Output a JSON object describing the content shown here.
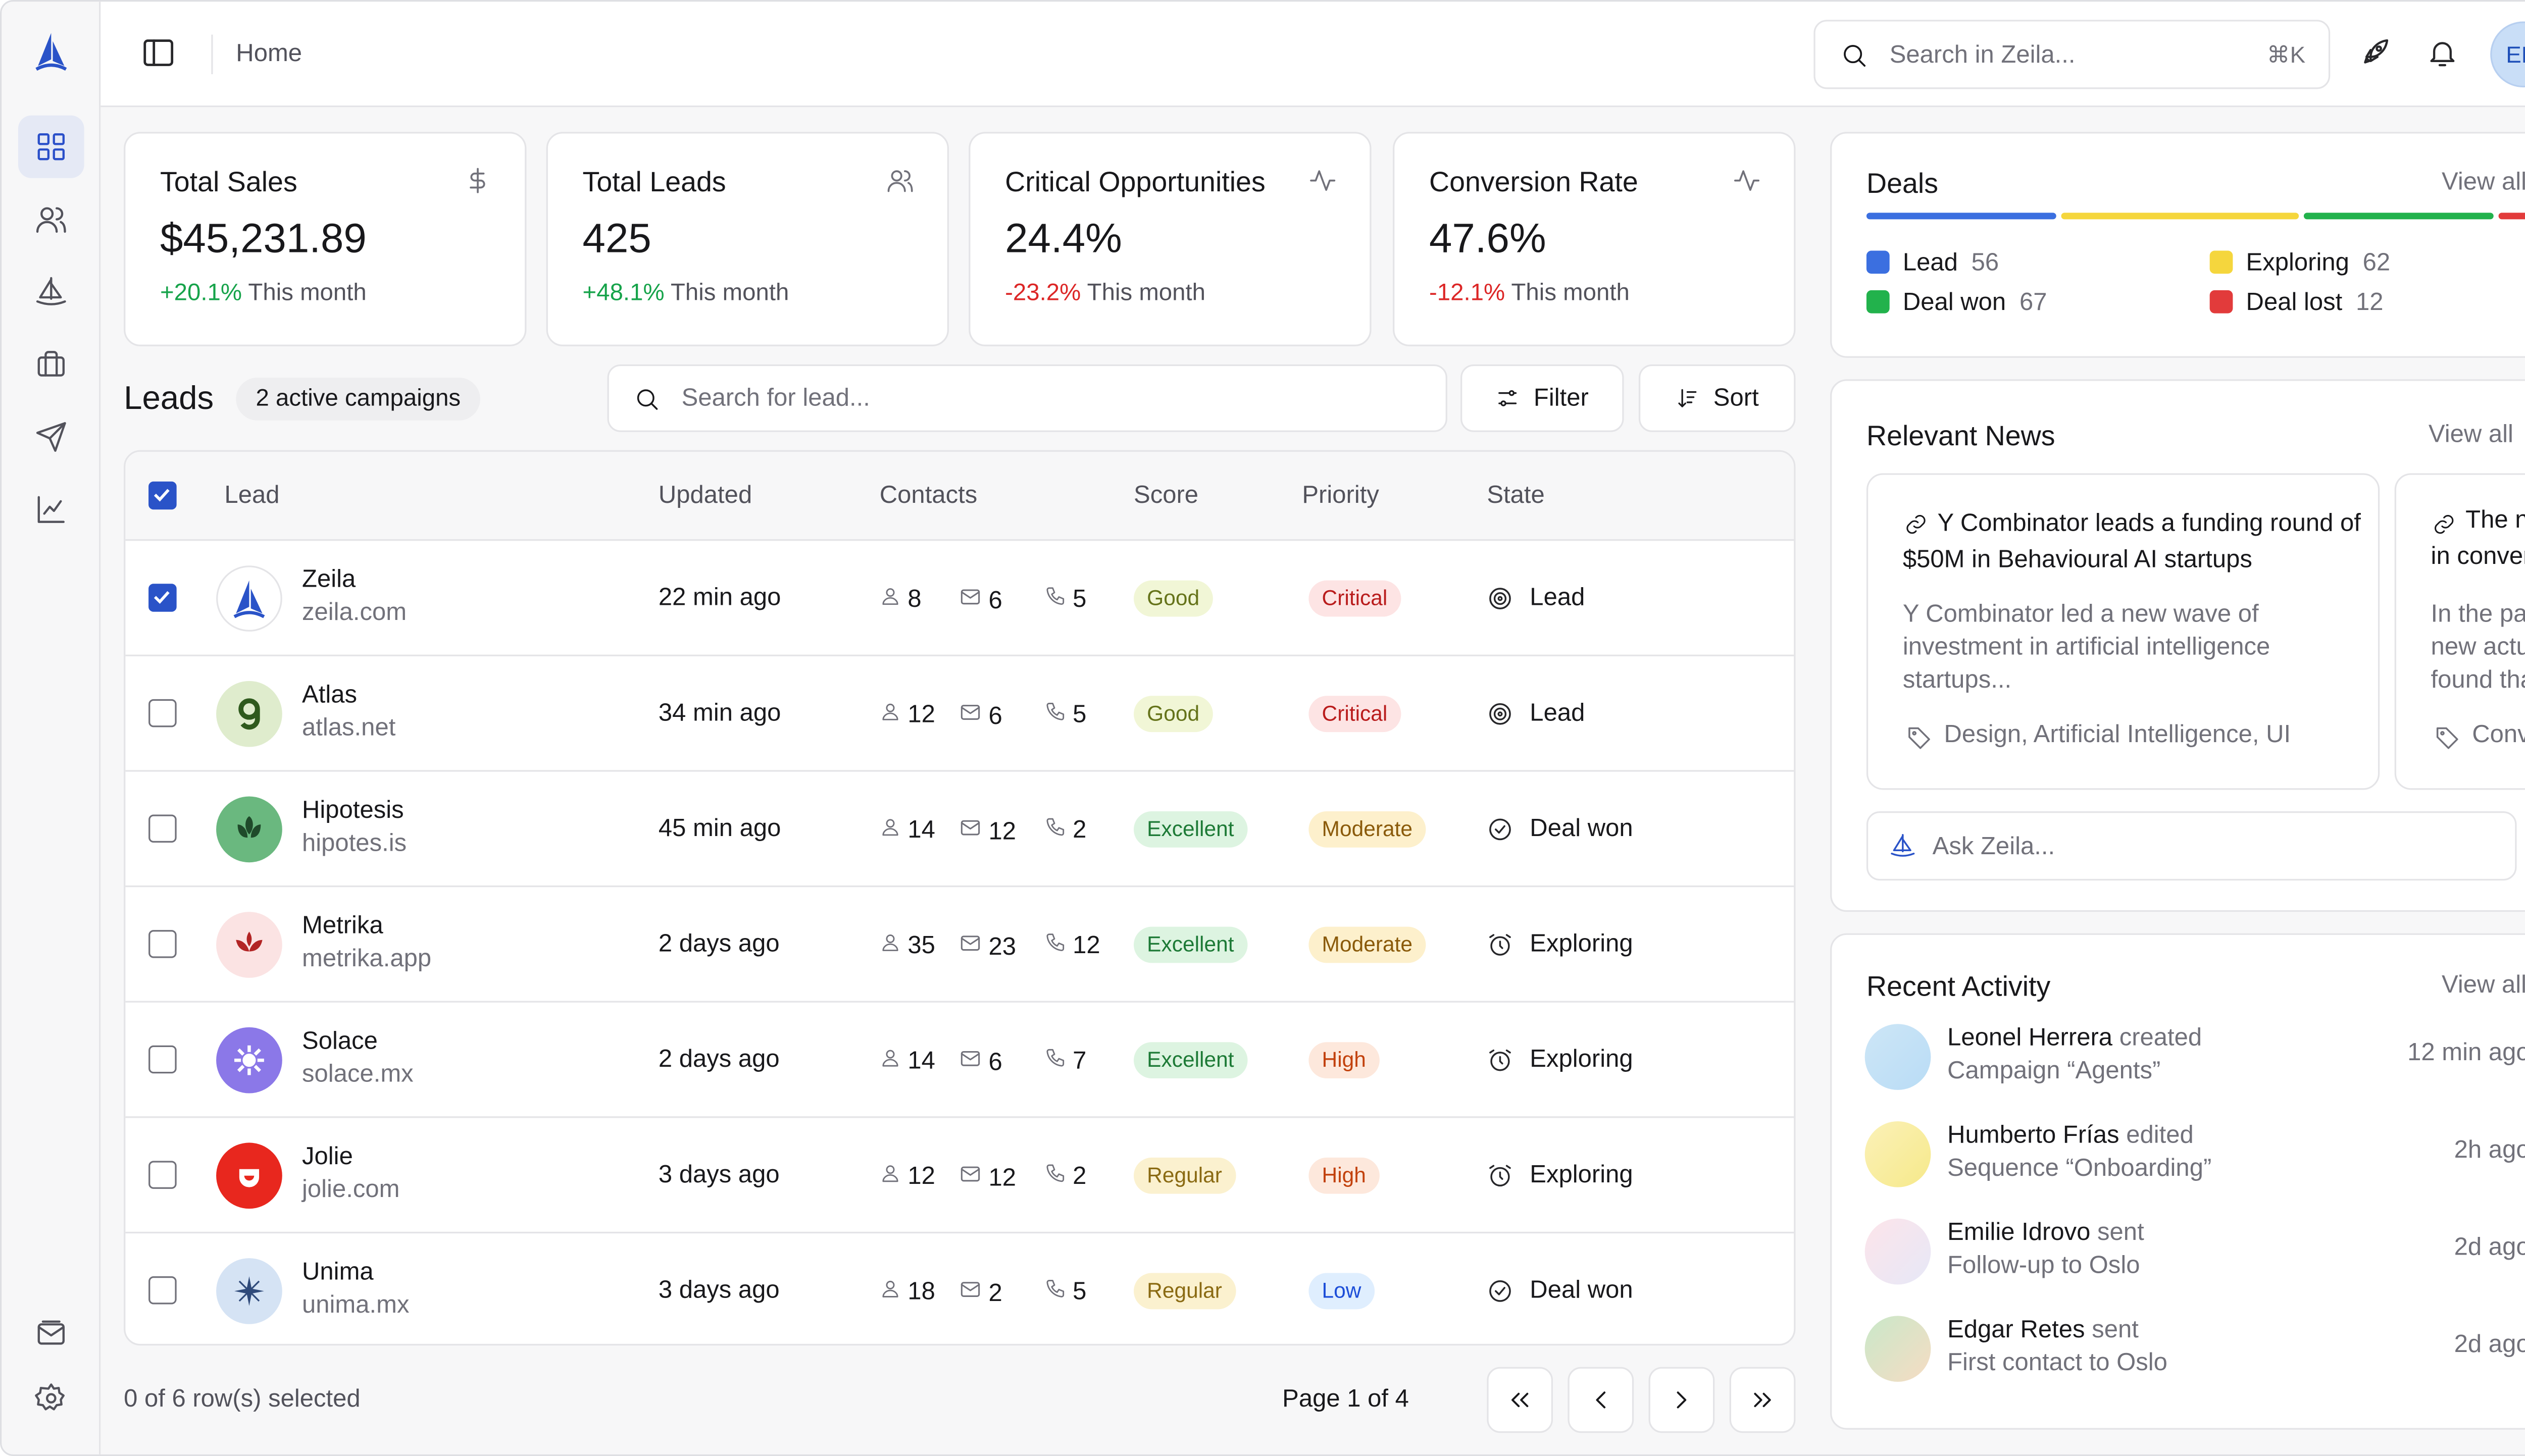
{
  "topbar": {
    "breadcrumb": "Home",
    "search_placeholder": "Search in Zeila...",
    "search_shortcut": "⌘K",
    "avatar_initials": "EM"
  },
  "sidebar": {
    "items": [
      {
        "icon": "dashboard-icon",
        "active": true
      },
      {
        "icon": "users-icon"
      },
      {
        "icon": "sailboat-icon"
      },
      {
        "icon": "briefcase-icon"
      },
      {
        "icon": "send-icon"
      },
      {
        "icon": "chart-icon"
      }
    ],
    "bottom_items": [
      {
        "icon": "inbox-icon"
      },
      {
        "icon": "settings-icon"
      }
    ]
  },
  "stats": [
    {
      "title": "Total Sales",
      "value": "$45,231.89",
      "delta": "+20.1%",
      "suffix": "This month",
      "trend": "pos",
      "icon": "dollar-icon"
    },
    {
      "title": "Total Leads",
      "value": "425",
      "delta": "+48.1%",
      "suffix": "This month",
      "trend": "pos",
      "icon": "users-icon"
    },
    {
      "title": "Critical Opportunities",
      "value": "24.4%",
      "delta": "-23.2%",
      "suffix": "This month",
      "trend": "neg",
      "icon": "activity-icon"
    },
    {
      "title": "Conversion Rate",
      "value": "47.6%",
      "delta": "-12.1%",
      "suffix": "This month",
      "trend": "neg",
      "icon": "activity-icon"
    }
  ],
  "leads": {
    "title": "Leads",
    "campaigns_badge": "2 active campaigns",
    "search_placeholder": "Search for lead...",
    "filter_label": "Filter",
    "sort_label": "Sort",
    "columns": [
      "Lead",
      "Updated",
      "Contacts",
      "Score",
      "Priority",
      "State"
    ],
    "rows": [
      {
        "name": "Zeila",
        "domain": "zeila.com",
        "updated": "22 min ago",
        "people": "8",
        "emails": "6",
        "calls": "5",
        "score": "Good",
        "priority": "Critical",
        "state": "Lead",
        "checked": true
      },
      {
        "name": "Atlas",
        "domain": "atlas.net",
        "updated": "34 min ago",
        "people": "12",
        "emails": "6",
        "calls": "5",
        "score": "Good",
        "priority": "Critical",
        "state": "Lead",
        "checked": false
      },
      {
        "name": "Hipotesis",
        "domain": "hipotes.is",
        "updated": "45 min ago",
        "people": "14",
        "emails": "12",
        "calls": "2",
        "score": "Excellent",
        "priority": "Moderate",
        "state": "Deal won",
        "checked": false
      },
      {
        "name": "Metrika",
        "domain": "metrika.app",
        "updated": "2 days ago",
        "people": "35",
        "emails": "23",
        "calls": "12",
        "score": "Excellent",
        "priority": "Moderate",
        "state": "Exploring",
        "checked": false
      },
      {
        "name": "Solace",
        "domain": "solace.mx",
        "updated": "2 days ago",
        "people": "14",
        "emails": "6",
        "calls": "7",
        "score": "Excellent",
        "priority": "High",
        "state": "Exploring",
        "checked": false
      },
      {
        "name": "Jolie",
        "domain": "jolie.com",
        "updated": "3 days ago",
        "people": "12",
        "emails": "12",
        "calls": "2",
        "score": "Regular",
        "priority": "High",
        "state": "Exploring",
        "checked": false
      },
      {
        "name": "Unima",
        "domain": "unima.mx",
        "updated": "3 days ago",
        "people": "18",
        "emails": "2",
        "calls": "5",
        "score": "Regular",
        "priority": "Low",
        "state": "Deal won",
        "checked": false
      }
    ],
    "selection_text": "0 of 6 row(s) selected",
    "page_text": "Page 1 of 4"
  },
  "deals": {
    "title": "Deals",
    "view_all": "View all",
    "items": [
      {
        "label": "Lead",
        "count": "56",
        "color": "#3b6fe0"
      },
      {
        "label": "Exploring",
        "count": "62",
        "color": "#f5d63d"
      },
      {
        "label": "Deal won",
        "count": "67",
        "color": "#22b24c"
      },
      {
        "label": "Deal lost",
        "count": "12",
        "color": "#e23b3b"
      }
    ]
  },
  "news": {
    "title": "Relevant News",
    "view_all": "View all",
    "items": [
      {
        "title": "Y Combinator leads a funding round of $50M in Behavioural AI startups",
        "summary": "Y Combinator led a new wave of investment in artificial intelligence startups...",
        "tags": "Design, Artificial Intelligence, UI"
      },
      {
        "title": "The new",
        "title2": "in conversa",
        "summary": "In the past",
        "summary2": "new actuali",
        "summary3": "found that t",
        "tags": "Convers"
      }
    ],
    "ask_placeholder": "Ask Zeila..."
  },
  "activity": {
    "title": "Recent Activity",
    "view_all": "View all",
    "items": [
      {
        "name": "Leonel Herrera",
        "action": "created",
        "object": "Campaign “Agents”",
        "time": "12 min ago"
      },
      {
        "name": "Humberto Frías",
        "action": "edited",
        "object": "Sequence “Onboarding”",
        "time": "2h ago"
      },
      {
        "name": "Emilie Idrovo",
        "action": "sent",
        "object": "Follow-up to Oslo",
        "time": "2d ago"
      },
      {
        "name": "Edgar Retes",
        "action": "sent",
        "object": "First contact to Oslo",
        "time": "2d ago"
      }
    ]
  }
}
